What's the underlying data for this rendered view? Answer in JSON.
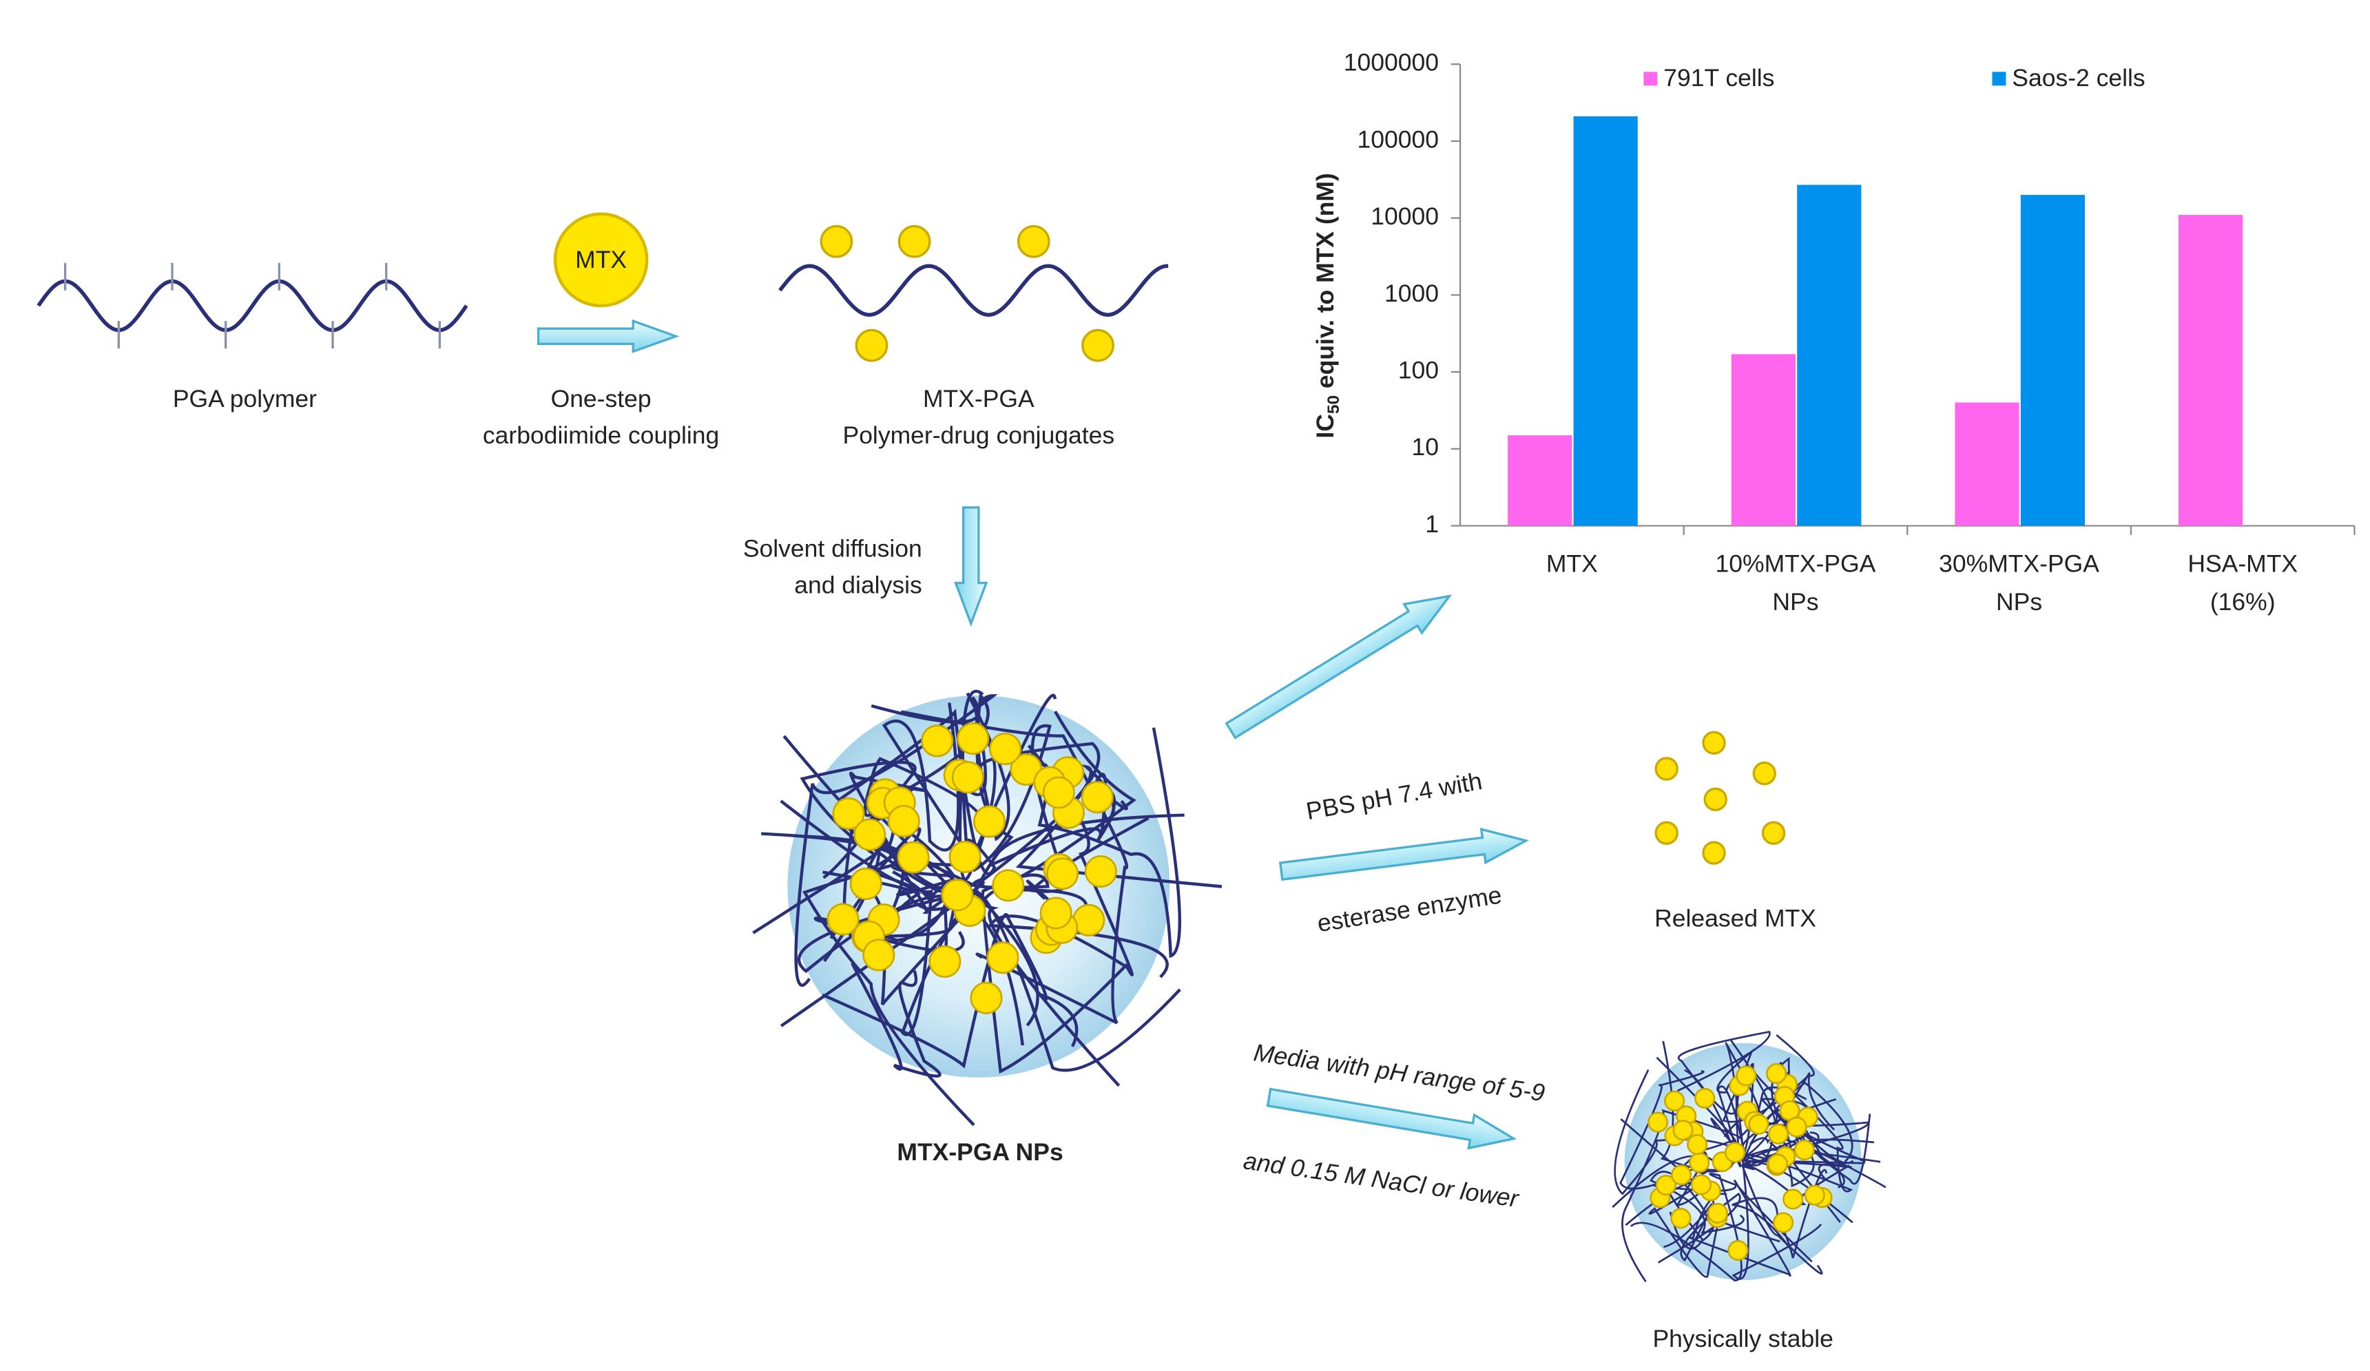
{
  "diagram": {
    "polymer": "PGA polymer",
    "drug": "MTX",
    "coupling": [
      "One-step",
      "carbodiimide coupling"
    ],
    "conjugate": [
      "MTX-PGA",
      "Polymer-drug conjugates"
    ],
    "assembly": [
      "Solvent diffusion",
      "and dialysis"
    ],
    "nanoparticles": "MTX-PGA NPs",
    "release_condition": [
      "PBS pH 7.4 with",
      "esterase enzyme"
    ],
    "release_result": "Released MTX",
    "stability_condition": [
      "Media with pH range of 5-9",
      "and 0.15 M NaCl or lower"
    ],
    "stability_result": "Physically stable"
  },
  "chart_data": {
    "type": "bar",
    "ylabel": {
      "main": "IC",
      "sub": "50",
      "rest": " equiv. to MTX (nM)"
    },
    "categories": [
      [
        "MTX"
      ],
      [
        "10%MTX-PGA",
        "NPs"
      ],
      [
        "30%MTX-PGA",
        "NPs"
      ],
      [
        "HSA-MTX",
        "(16%)"
      ]
    ],
    "series": [
      {
        "name": "791T cells",
        "color": "#ff66ee",
        "values": [
          15,
          170,
          40,
          11000
        ]
      },
      {
        "name": "Saos-2 cells",
        "color": "#0090ee",
        "values": [
          210000,
          27000,
          20000,
          null
        ]
      }
    ],
    "ylim": [
      1,
      1000000
    ],
    "yticks": [
      1,
      10,
      100,
      1000,
      10000,
      100000,
      1000000
    ],
    "log_scale": true,
    "grid": false
  }
}
